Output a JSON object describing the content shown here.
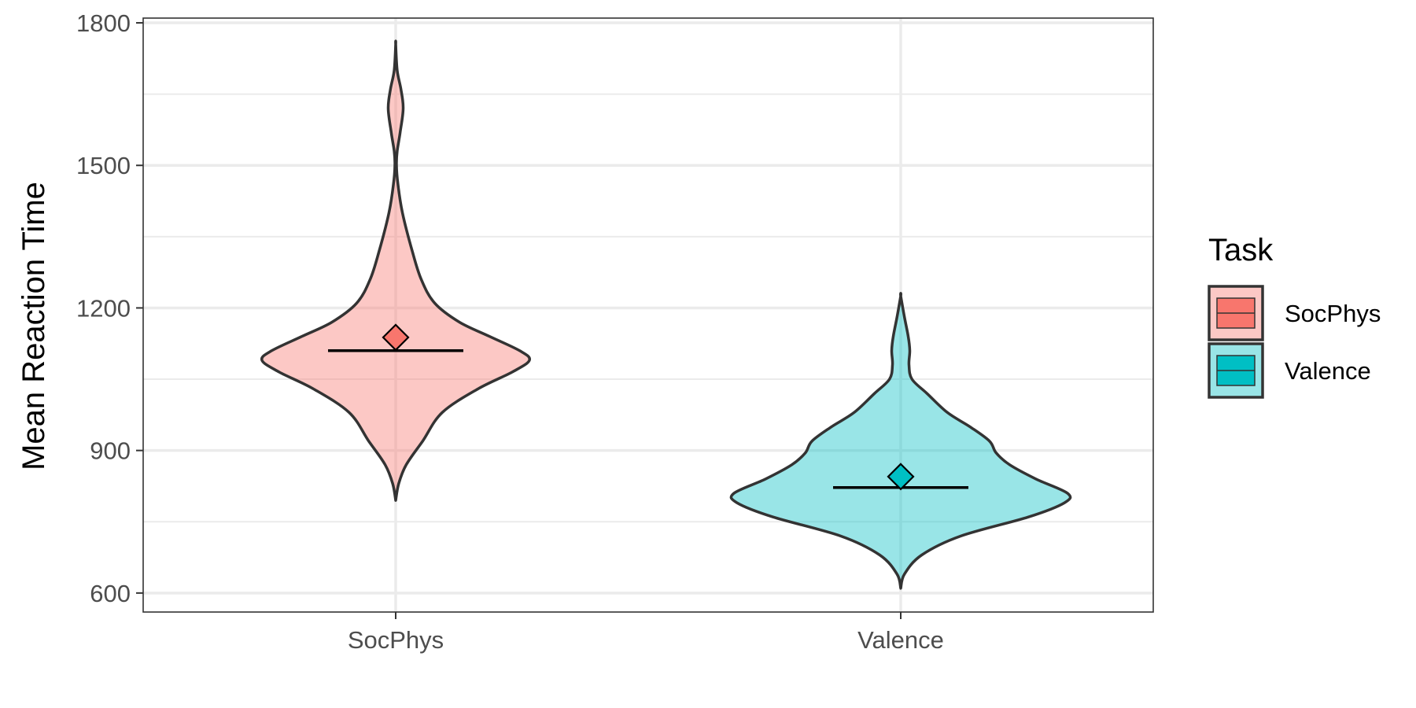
{
  "chart_data": {
    "type": "violin",
    "title": "",
    "xlabel": "",
    "ylabel": "Mean Reaction Time",
    "ylim": [
      560,
      1810
    ],
    "yticks": [
      600,
      900,
      1200,
      1500,
      1800
    ],
    "y_tick_labels": [
      "600",
      "900",
      "1200",
      "1500",
      "1800"
    ],
    "categories": [
      "SocPhys",
      "Valence"
    ],
    "grid": true,
    "legend": {
      "title": "Task",
      "position": "right",
      "entries": [
        "SocPhys",
        "Valence"
      ]
    },
    "colors": {
      "SocPhys": "#F8766D",
      "Valence": "#00BFC4"
    },
    "series": [
      {
        "name": "SocPhys",
        "min": 795,
        "max": 1755,
        "median": 1110,
        "mean": 1138,
        "profile": [
          [
            795,
            0
          ],
          [
            830,
            4
          ],
          [
            870,
            14
          ],
          [
            920,
            36
          ],
          [
            980,
            62
          ],
          [
            1030,
            110
          ],
          [
            1065,
            155
          ],
          [
            1090,
            178
          ],
          [
            1110,
            165
          ],
          [
            1140,
            125
          ],
          [
            1170,
            85
          ],
          [
            1210,
            52
          ],
          [
            1260,
            34
          ],
          [
            1320,
            22
          ],
          [
            1400,
            9
          ],
          [
            1460,
            3
          ],
          [
            1500,
            1
          ],
          [
            1530,
            2
          ],
          [
            1570,
            6
          ],
          [
            1620,
            10
          ],
          [
            1660,
            7
          ],
          [
            1700,
            2
          ],
          [
            1755,
            0
          ]
        ]
      },
      {
        "name": "Valence",
        "min": 610,
        "max": 1225,
        "median": 822,
        "mean": 845,
        "profile": [
          [
            610,
            0
          ],
          [
            640,
            5
          ],
          [
            680,
            28
          ],
          [
            720,
            80
          ],
          [
            760,
            170
          ],
          [
            790,
            218
          ],
          [
            810,
            222
          ],
          [
            840,
            180
          ],
          [
            870,
            145
          ],
          [
            895,
            127
          ],
          [
            920,
            118
          ],
          [
            950,
            92
          ],
          [
            980,
            62
          ],
          [
            1020,
            35
          ],
          [
            1050,
            15
          ],
          [
            1080,
            11
          ],
          [
            1110,
            12
          ],
          [
            1140,
            10
          ],
          [
            1180,
            5
          ],
          [
            1225,
            0
          ]
        ]
      }
    ]
  }
}
